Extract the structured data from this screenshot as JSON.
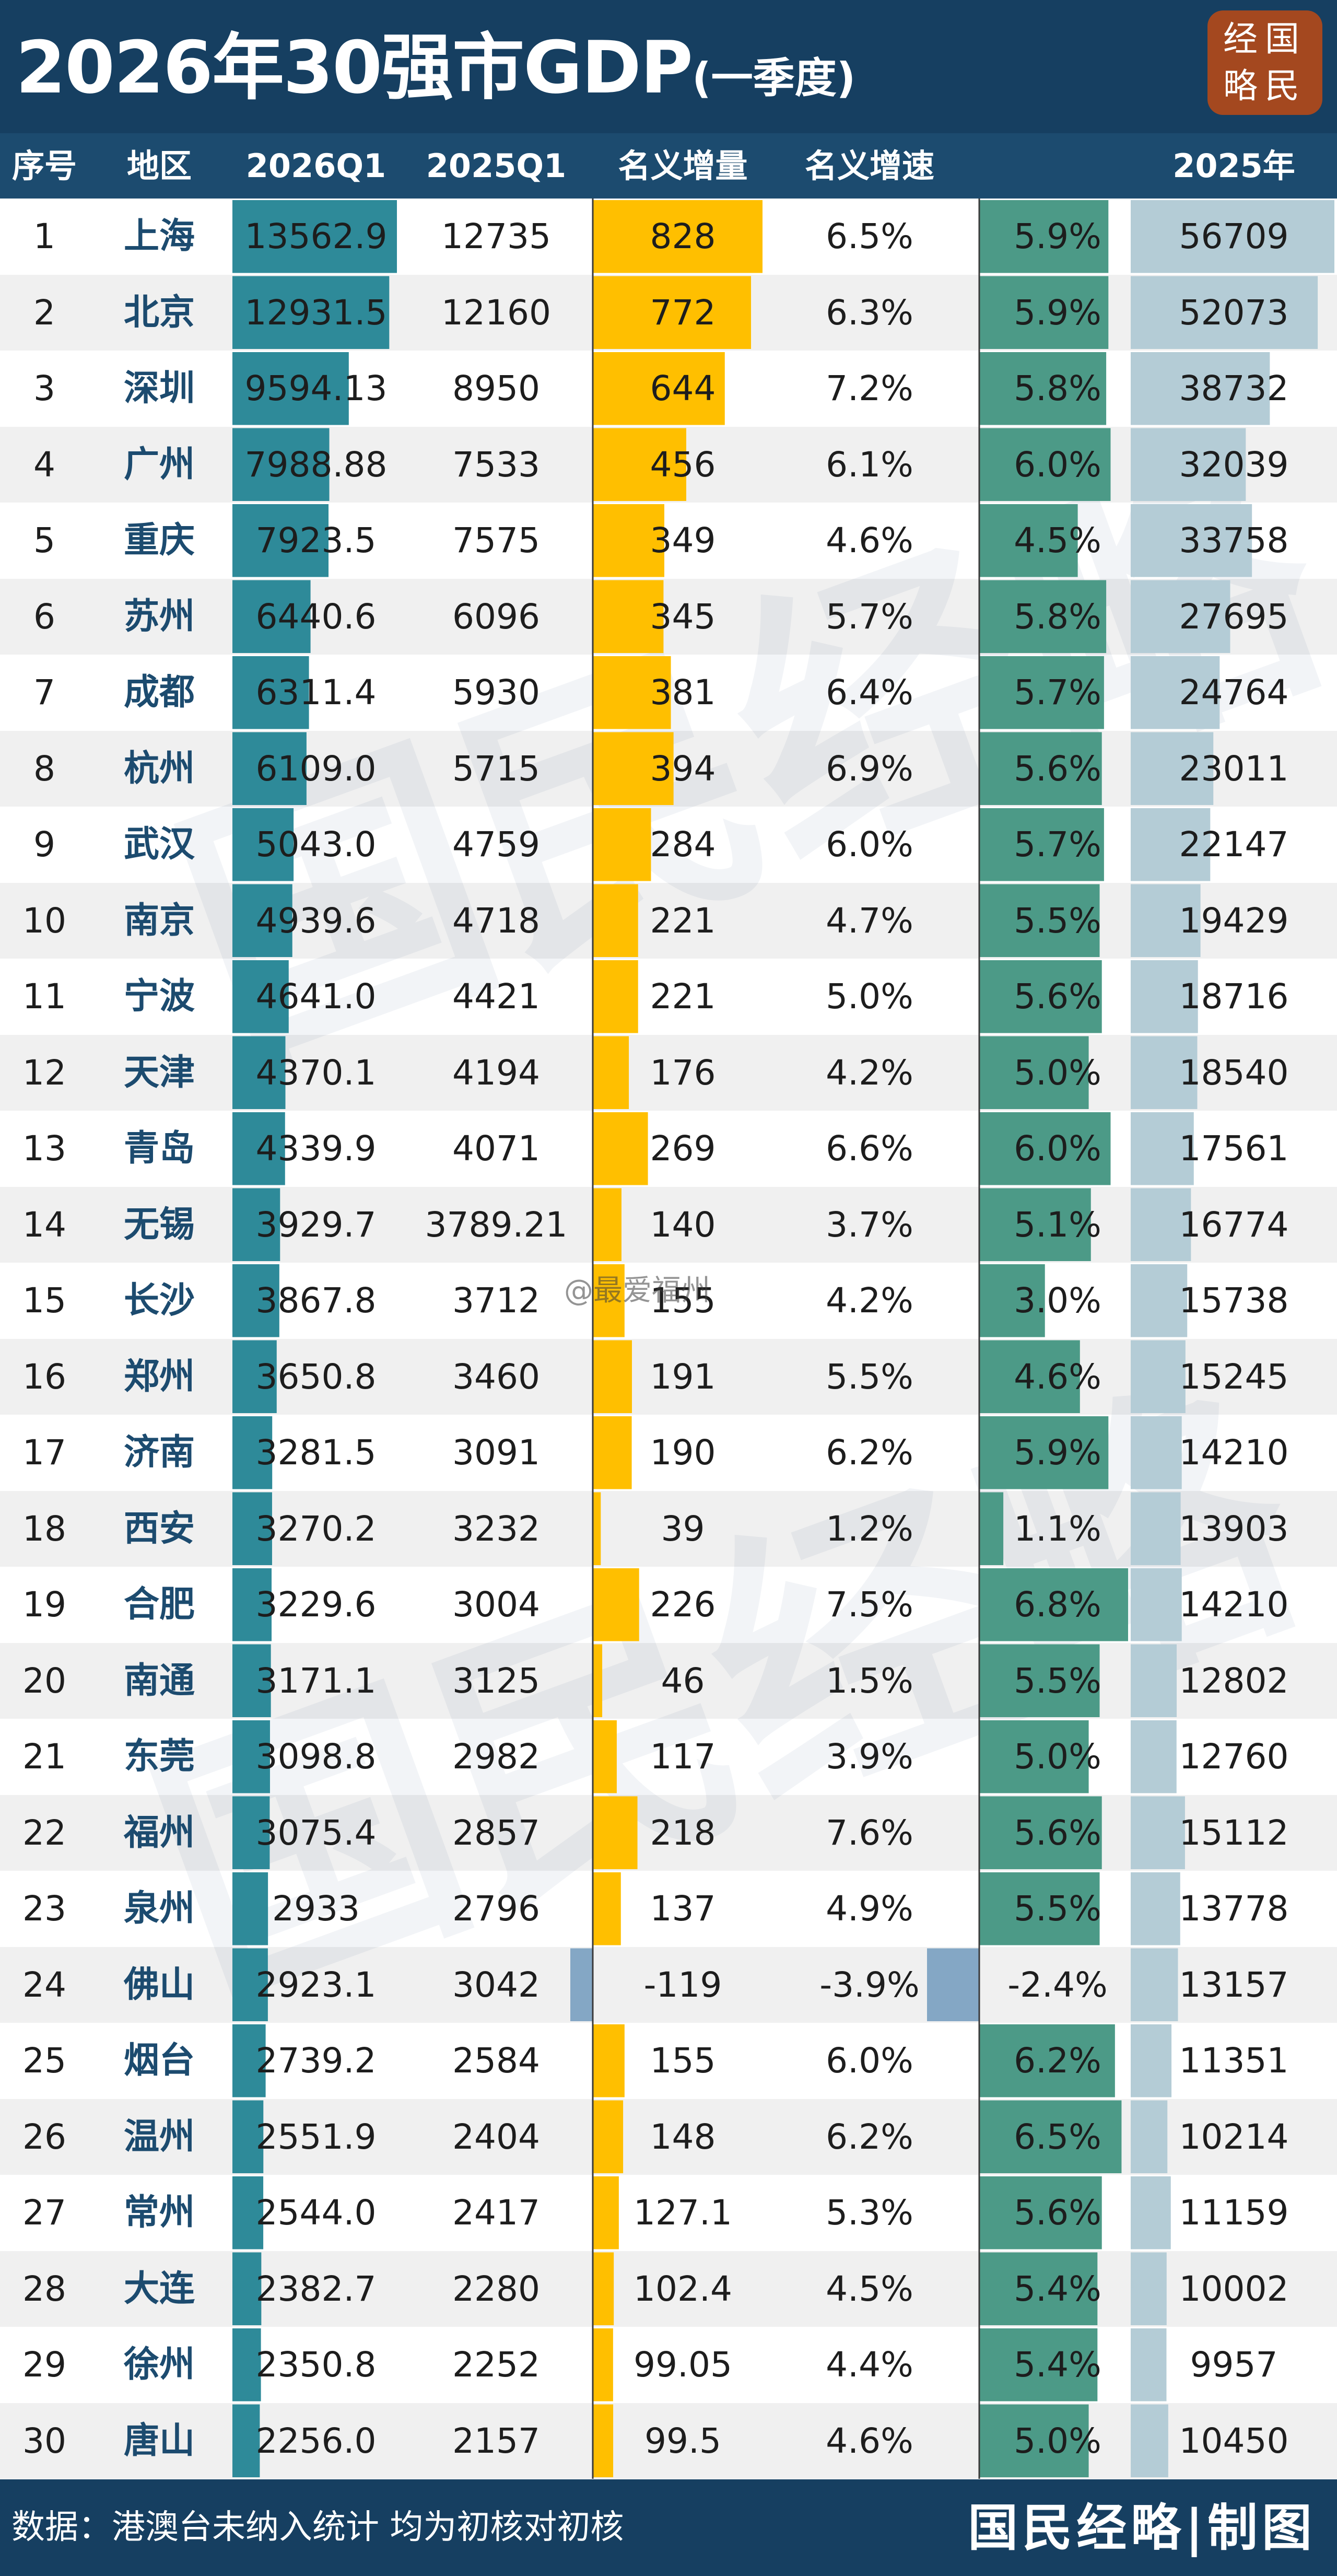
{
  "title": "2026年30强市GDP",
  "subtitle": "(一季度)",
  "logo": {
    "line1": "经国",
    "line2": "略民"
  },
  "colors": {
    "header_bg": "#163f61",
    "col_header_bg": "#1c4b6f",
    "gdp2026_bar": "#2e8a99",
    "increase_bar": "#ffbf00",
    "real_growth_bar": "#4c9a87",
    "gdp2025_bar": "#b4ccd6",
    "negative_bar": "#84a7c5",
    "stripe": "#f0f0f0",
    "logo_bg": "#a4481f"
  },
  "headers": {
    "rank": "序号",
    "region": "地区",
    "q1_2026": "2026Q1",
    "q1_2025": "2025Q1",
    "nominal_increase": "名义增量",
    "nominal_growth": "名义增速",
    "real_growth": "",
    "full_2025": "2025年"
  },
  "chart_data": {
    "type": "table",
    "columns": [
      "序号",
      "地区",
      "2026Q1",
      "2025Q1",
      "名义增量",
      "名义增速",
      "",
      "2025年"
    ],
    "rows": [
      {
        "rank": "1",
        "city": "上海",
        "q1_2026": "13562.9",
        "q1_2025": "12735",
        "increase": "828",
        "nominal_growth": "6.5%",
        "real_growth": "5.9%",
        "full_2025": "56709"
      },
      {
        "rank": "2",
        "city": "北京",
        "q1_2026": "12931.5",
        "q1_2025": "12160",
        "increase": "772",
        "nominal_growth": "6.3%",
        "real_growth": "5.9%",
        "full_2025": "52073"
      },
      {
        "rank": "3",
        "city": "深圳",
        "q1_2026": "9594.13",
        "q1_2025": "8950",
        "increase": "644",
        "nominal_growth": "7.2%",
        "real_growth": "5.8%",
        "full_2025": "38732"
      },
      {
        "rank": "4",
        "city": "广州",
        "q1_2026": "7988.88",
        "q1_2025": "7533",
        "increase": "456",
        "nominal_growth": "6.1%",
        "real_growth": "6.0%",
        "full_2025": "32039"
      },
      {
        "rank": "5",
        "city": "重庆",
        "q1_2026": "7923.5",
        "q1_2025": "7575",
        "increase": "349",
        "nominal_growth": "4.6%",
        "real_growth": "4.5%",
        "full_2025": "33758"
      },
      {
        "rank": "6",
        "city": "苏州",
        "q1_2026": "6440.6",
        "q1_2025": "6096",
        "increase": "345",
        "nominal_growth": "5.7%",
        "real_growth": "5.8%",
        "full_2025": "27695"
      },
      {
        "rank": "7",
        "city": "成都",
        "q1_2026": "6311.4",
        "q1_2025": "5930",
        "increase": "381",
        "nominal_growth": "6.4%",
        "real_growth": "5.7%",
        "full_2025": "24764"
      },
      {
        "rank": "8",
        "city": "杭州",
        "q1_2026": "6109.0",
        "q1_2025": "5715",
        "increase": "394",
        "nominal_growth": "6.9%",
        "real_growth": "5.6%",
        "full_2025": "23011"
      },
      {
        "rank": "9",
        "city": "武汉",
        "q1_2026": "5043.0",
        "q1_2025": "4759",
        "increase": "284",
        "nominal_growth": "6.0%",
        "real_growth": "5.7%",
        "full_2025": "22147"
      },
      {
        "rank": "10",
        "city": "南京",
        "q1_2026": "4939.6",
        "q1_2025": "4718",
        "increase": "221",
        "nominal_growth": "4.7%",
        "real_growth": "5.5%",
        "full_2025": "19429"
      },
      {
        "rank": "11",
        "city": "宁波",
        "q1_2026": "4641.0",
        "q1_2025": "4421",
        "increase": "221",
        "nominal_growth": "5.0%",
        "real_growth": "5.6%",
        "full_2025": "18716"
      },
      {
        "rank": "12",
        "city": "天津",
        "q1_2026": "4370.1",
        "q1_2025": "4194",
        "increase": "176",
        "nominal_growth": "4.2%",
        "real_growth": "5.0%",
        "full_2025": "18540"
      },
      {
        "rank": "13",
        "city": "青岛",
        "q1_2026": "4339.9",
        "q1_2025": "4071",
        "increase": "269",
        "nominal_growth": "6.6%",
        "real_growth": "6.0%",
        "full_2025": "17561"
      },
      {
        "rank": "14",
        "city": "无锡",
        "q1_2026": "3929.7",
        "q1_2025": "3789.21",
        "increase": "140",
        "nominal_growth": "3.7%",
        "real_growth": "5.1%",
        "full_2025": "16774"
      },
      {
        "rank": "15",
        "city": "长沙",
        "q1_2026": "3867.8",
        "q1_2025": "3712",
        "increase": "155",
        "nominal_growth": "4.2%",
        "real_growth": "3.0%",
        "full_2025": "15738"
      },
      {
        "rank": "16",
        "city": "郑州",
        "q1_2026": "3650.8",
        "q1_2025": "3460",
        "increase": "191",
        "nominal_growth": "5.5%",
        "real_growth": "4.6%",
        "full_2025": "15245"
      },
      {
        "rank": "17",
        "city": "济南",
        "q1_2026": "3281.5",
        "q1_2025": "3091",
        "increase": "190",
        "nominal_growth": "6.2%",
        "real_growth": "5.9%",
        "full_2025": "14210"
      },
      {
        "rank": "18",
        "city": "西安",
        "q1_2026": "3270.2",
        "q1_2025": "3232",
        "increase": "39",
        "nominal_growth": "1.2%",
        "real_growth": "1.1%",
        "full_2025": "13903"
      },
      {
        "rank": "19",
        "city": "合肥",
        "q1_2026": "3229.6",
        "q1_2025": "3004",
        "increase": "226",
        "nominal_growth": "7.5%",
        "real_growth": "6.8%",
        "full_2025": "14210"
      },
      {
        "rank": "20",
        "city": "南通",
        "q1_2026": "3171.1",
        "q1_2025": "3125",
        "increase": "46",
        "nominal_growth": "1.5%",
        "real_growth": "5.5%",
        "full_2025": "12802"
      },
      {
        "rank": "21",
        "city": "东莞",
        "q1_2026": "3098.8",
        "q1_2025": "2982",
        "increase": "117",
        "nominal_growth": "3.9%",
        "real_growth": "5.0%",
        "full_2025": "12760"
      },
      {
        "rank": "22",
        "city": "福州",
        "q1_2026": "3075.4",
        "q1_2025": "2857",
        "increase": "218",
        "nominal_growth": "7.6%",
        "real_growth": "5.6%",
        "full_2025": "15112"
      },
      {
        "rank": "23",
        "city": "泉州",
        "q1_2026": "2933",
        "q1_2025": "2796",
        "increase": "137",
        "nominal_growth": "4.9%",
        "real_growth": "5.5%",
        "full_2025": "13778"
      },
      {
        "rank": "24",
        "city": "佛山",
        "q1_2026": "2923.1",
        "q1_2025": "3042",
        "increase": "-119",
        "nominal_growth": "-3.9%",
        "real_growth": "-2.4%",
        "full_2025": "13157"
      },
      {
        "rank": "25",
        "city": "烟台",
        "q1_2026": "2739.2",
        "q1_2025": "2584",
        "increase": "155",
        "nominal_growth": "6.0%",
        "real_growth": "6.2%",
        "full_2025": "11351"
      },
      {
        "rank": "26",
        "city": "温州",
        "q1_2026": "2551.9",
        "q1_2025": "2404",
        "increase": "148",
        "nominal_growth": "6.2%",
        "real_growth": "6.5%",
        "full_2025": "10214"
      },
      {
        "rank": "27",
        "city": "常州",
        "q1_2026": "2544.0",
        "q1_2025": "2417",
        "increase": "127.1",
        "nominal_growth": "5.3%",
        "real_growth": "5.6%",
        "full_2025": "11159"
      },
      {
        "rank": "28",
        "city": "大连",
        "q1_2026": "2382.7",
        "q1_2025": "2280",
        "increase": "102.4",
        "nominal_growth": "4.5%",
        "real_growth": "5.4%",
        "full_2025": "10002"
      },
      {
        "rank": "29",
        "city": "徐州",
        "q1_2026": "2350.8",
        "q1_2025": "2252",
        "increase": "99.05",
        "nominal_growth": "4.4%",
        "real_growth": "5.4%",
        "full_2025": "9957"
      },
      {
        "rank": "30",
        "city": "唐山",
        "q1_2026": "2256.0",
        "q1_2025": "2157",
        "increase": "99.5",
        "nominal_growth": "4.6%",
        "real_growth": "5.0%",
        "full_2025": "10450"
      }
    ]
  },
  "footer": {
    "note": "数据：港澳台未纳入统计 均为初核对初核",
    "brand": "国民经略|制图"
  },
  "watermark": {
    "text": "国民经略",
    "weibo": "@最爱福州"
  }
}
